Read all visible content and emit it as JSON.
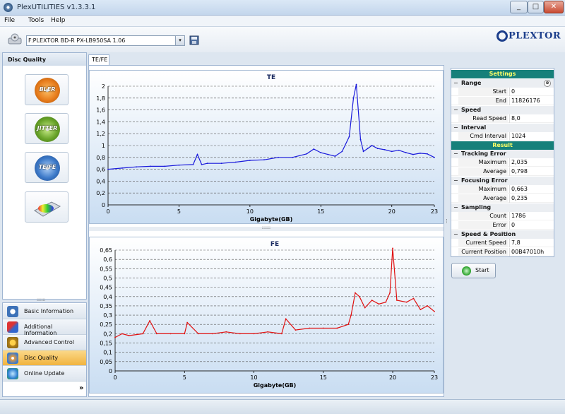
{
  "window": {
    "title": "PlexUTILITIES v1.3.3.1",
    "minimize": "_",
    "maximize": "□",
    "close": "✕"
  },
  "menu": [
    "File",
    "Tools",
    "Help"
  ],
  "drive": {
    "selected": "F:PLEXTOR BD-R  PX-LB950SA 1.06"
  },
  "logo": "PLEXTOR",
  "left": {
    "heading": "Disc Quality",
    "tests": [
      {
        "label": "BLER",
        "color": "#e87d1c"
      },
      {
        "label": "JITTER",
        "color": "#6aa52a"
      },
      {
        "label": "TE/FE",
        "color": "#3d7ac9"
      },
      {
        "label": "",
        "color": "#c8cdd3"
      }
    ]
  },
  "nav": {
    "items": [
      {
        "label": "Basic Information",
        "icon": "info-icon",
        "selected": false
      },
      {
        "label": "Additional Information",
        "icon": "chart-icon",
        "selected": false
      },
      {
        "label": "Advanced Control",
        "icon": "settings-icon",
        "selected": false
      },
      {
        "label": "Disc Quality",
        "icon": "disc-icon",
        "selected": true
      },
      {
        "label": "Online Update",
        "icon": "globe-icon",
        "selected": false
      }
    ],
    "more": "»"
  },
  "tab": "TE/FE",
  "charts": {
    "te_title": "TE",
    "fe_title": "FE",
    "xlabel": "Gigabyte(GB)"
  },
  "chart_data": [
    {
      "type": "line",
      "title": "TE",
      "xlabel": "Gigabyte(GB)",
      "ylabel": "",
      "xlim": [
        0,
        23
      ],
      "ylim": [
        0,
        2
      ],
      "xticks": [
        "0",
        "5",
        "10",
        "15",
        "20",
        "23"
      ],
      "yticks": [
        "0",
        "0,2",
        "0,4",
        "0,6",
        "0,8",
        "1",
        "1,2",
        "1,4",
        "1,6",
        "1,8",
        "2"
      ],
      "grid": true,
      "color": "#1a1adb",
      "series": [
        {
          "x": [
            0,
            1,
            2,
            3,
            4,
            5,
            6,
            6.3,
            6.6,
            7,
            8,
            9,
            10,
            11,
            12,
            13,
            14,
            14.5,
            15,
            15.5,
            16,
            16.5,
            17,
            17.3,
            17.5,
            17.8,
            18,
            18.3,
            18.6,
            19,
            19.5,
            20,
            20.5,
            21,
            21.5,
            22,
            22.5,
            23
          ],
          "y": [
            0.6,
            0.62,
            0.64,
            0.65,
            0.65,
            0.67,
            0.68,
            0.85,
            0.68,
            0.7,
            0.7,
            0.72,
            0.75,
            0.76,
            0.8,
            0.8,
            0.86,
            0.94,
            0.88,
            0.85,
            0.82,
            0.9,
            1.15,
            1.8,
            2.03,
            1.1,
            0.9,
            0.95,
            1.0,
            0.95,
            0.93,
            0.9,
            0.92,
            0.88,
            0.85,
            0.87,
            0.86,
            0.8
          ]
        }
      ]
    },
    {
      "type": "line",
      "title": "FE",
      "xlabel": "Gigabyte(GB)",
      "ylabel": "",
      "xlim": [
        0,
        23
      ],
      "ylim": [
        0,
        0.65
      ],
      "xticks": [
        "0",
        "5",
        "10",
        "15",
        "20",
        "23"
      ],
      "yticks": [
        "0",
        "0,05",
        "0,1",
        "0,15",
        "0,2",
        "0,25",
        "0,3",
        "0,35",
        "0,4",
        "0,45",
        "0,5",
        "0,55",
        "0,6",
        "0,65"
      ],
      "grid": true,
      "color": "#e01010",
      "series": [
        {
          "x": [
            0,
            0.5,
            1,
            2,
            2.5,
            3,
            4,
            5,
            5.2,
            6,
            7,
            8,
            9,
            10,
            11,
            12,
            12.3,
            13,
            14,
            15,
            16,
            16.8,
            17,
            17.3,
            17.6,
            18,
            18.5,
            19,
            19.5,
            19.8,
            20,
            20.3,
            21,
            21.5,
            22,
            22.5,
            23
          ],
          "y": [
            0.18,
            0.2,
            0.19,
            0.2,
            0.27,
            0.2,
            0.2,
            0.2,
            0.26,
            0.2,
            0.2,
            0.21,
            0.2,
            0.2,
            0.21,
            0.2,
            0.28,
            0.22,
            0.23,
            0.23,
            0.23,
            0.25,
            0.3,
            0.42,
            0.4,
            0.34,
            0.38,
            0.36,
            0.37,
            0.42,
            0.66,
            0.38,
            0.37,
            0.39,
            0.33,
            0.35,
            0.32
          ]
        }
      ]
    }
  ],
  "settings": {
    "header": "Settings",
    "range": {
      "label": "Range",
      "start_label": "Start",
      "start": "0",
      "end_label": "End",
      "end": "11826176"
    },
    "speed": {
      "label": "Speed",
      "read_label": "Read Speed",
      "read": "8,0"
    },
    "interval": {
      "label": "Interval",
      "cmd_label": "Cmd Interval",
      "cmd": "1024"
    }
  },
  "result": {
    "header": "Result",
    "tracking": {
      "label": "Tracking Error",
      "max_label": "Maximum",
      "max": "2,035",
      "avg_label": "Average",
      "avg": "0,798"
    },
    "focusing": {
      "label": "Focusing Error",
      "max_label": "Maximum",
      "max": "0,663",
      "avg_label": "Average",
      "avg": "0,235"
    },
    "sampling": {
      "label": "Sampling",
      "count_label": "Count",
      "count": "1786",
      "error_label": "Error",
      "error": "0"
    },
    "speedpos": {
      "label": "Speed & Position",
      "speed_label": "Current Speed",
      "speed": "7,8",
      "pos_label": "Current Position",
      "pos": "00B47010h"
    }
  },
  "start_button": "Start",
  "grip": "::::::",
  "collapse": "−"
}
